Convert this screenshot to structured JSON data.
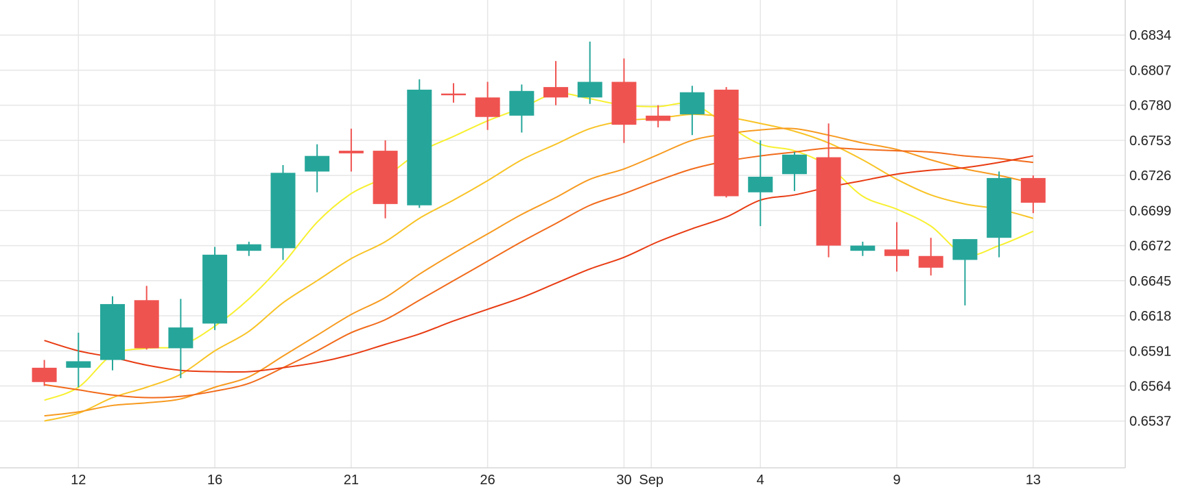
{
  "colors": {
    "background": "#ffffff",
    "grid": "#e6e6e6",
    "up": "#26a69a",
    "down": "#ef5350"
  },
  "chart_data": {
    "type": "candlestick",
    "grid": true,
    "y_axis_side": "right",
    "ylim": [
      0.6501,
      0.6861
    ],
    "xlim": [
      -1.3,
      31.7
    ],
    "y_ticks": [
      "0.6537",
      "0.6564",
      "0.6591",
      "0.6618",
      "0.6645",
      "0.6672",
      "0.6699",
      "0.6726",
      "0.6753",
      "0.6780",
      "0.6807",
      "0.6834"
    ],
    "x_ticks": [
      {
        "index": 1,
        "label": "12"
      },
      {
        "index": 5,
        "label": "16"
      },
      {
        "index": 9,
        "label": "21"
      },
      {
        "index": 13,
        "label": "26"
      },
      {
        "index": 17,
        "label": "30"
      },
      {
        "index": 17.8,
        "label": "Sep"
      },
      {
        "index": 21,
        "label": "4"
      },
      {
        "index": 25,
        "label": "9"
      },
      {
        "index": 29,
        "label": "13"
      }
    ],
    "candles": [
      {
        "open": 0.6578,
        "high": 0.6584,
        "low": 0.6564,
        "close": 0.6567
      },
      {
        "open": 0.6578,
        "high": 0.6605,
        "low": 0.6563,
        "close": 0.6583
      },
      {
        "open": 0.6584,
        "high": 0.6633,
        "low": 0.6576,
        "close": 0.6627
      },
      {
        "open": 0.663,
        "high": 0.6641,
        "low": 0.6592,
        "close": 0.6593
      },
      {
        "open": 0.6593,
        "high": 0.6631,
        "low": 0.657,
        "close": 0.6609
      },
      {
        "open": 0.6612,
        "high": 0.6671,
        "low": 0.6607,
        "close": 0.6665
      },
      {
        "open": 0.6668,
        "high": 0.6675,
        "low": 0.6664,
        "close": 0.6673
      },
      {
        "open": 0.667,
        "high": 0.6734,
        "low": 0.6661,
        "close": 0.6728
      },
      {
        "open": 0.6729,
        "high": 0.675,
        "low": 0.6713,
        "close": 0.6741
      },
      {
        "open": 0.6745,
        "high": 0.6762,
        "low": 0.6729,
        "close": 0.6743
      },
      {
        "open": 0.6745,
        "high": 0.6753,
        "low": 0.6693,
        "close": 0.6704
      },
      {
        "open": 0.6703,
        "high": 0.68,
        "low": 0.6701,
        "close": 0.6792
      },
      {
        "open": 0.6789,
        "high": 0.6797,
        "low": 0.6782,
        "close": 0.6788
      },
      {
        "open": 0.6786,
        "high": 0.6798,
        "low": 0.6761,
        "close": 0.6771
      },
      {
        "open": 0.6772,
        "high": 0.6796,
        "low": 0.6759,
        "close": 0.6791
      },
      {
        "open": 0.6794,
        "high": 0.6814,
        "low": 0.678,
        "close": 0.6786
      },
      {
        "open": 0.6786,
        "high": 0.6829,
        "low": 0.6781,
        "close": 0.6798
      },
      {
        "open": 0.6798,
        "high": 0.6816,
        "low": 0.6751,
        "close": 0.6765
      },
      {
        "open": 0.6772,
        "high": 0.678,
        "low": 0.6763,
        "close": 0.6768
      },
      {
        "open": 0.6773,
        "high": 0.6795,
        "low": 0.6757,
        "close": 0.679
      },
      {
        "open": 0.6792,
        "high": 0.6794,
        "low": 0.6709,
        "close": 0.671
      },
      {
        "open": 0.6713,
        "high": 0.6753,
        "low": 0.6687,
        "close": 0.6725
      },
      {
        "open": 0.6727,
        "high": 0.6744,
        "low": 0.6714,
        "close": 0.6742
      },
      {
        "open": 0.674,
        "high": 0.6766,
        "low": 0.6663,
        "close": 0.6672
      },
      {
        "open": 0.6668,
        "high": 0.6675,
        "low": 0.6664,
        "close": 0.6672
      },
      {
        "open": 0.6669,
        "high": 0.669,
        "low": 0.6652,
        "close": 0.6664
      },
      {
        "open": 0.6664,
        "high": 0.6678,
        "low": 0.6649,
        "close": 0.6655
      },
      {
        "open": 0.6661,
        "high": 0.6677,
        "low": 0.6626,
        "close": 0.6677
      },
      {
        "open": 0.6678,
        "high": 0.6729,
        "low": 0.6663,
        "close": 0.6724
      },
      {
        "open": 0.6724,
        "high": 0.6726,
        "low": 0.6697,
        "close": 0.6705
      }
    ],
    "series": [
      {
        "color": "#f7f02f",
        "values": [
          0.6553,
          0.6563,
          0.6588,
          0.6593,
          0.6595,
          0.661,
          0.6631,
          0.6658,
          0.669,
          0.6712,
          0.6725,
          0.6744,
          0.6756,
          0.6768,
          0.6778,
          0.6789,
          0.6785,
          0.678,
          0.6779,
          0.6781,
          0.6765,
          0.675,
          0.6745,
          0.6733,
          0.671,
          0.67,
          0.6687,
          0.6665,
          0.6672,
          0.6683
        ]
      },
      {
        "color": "#f8c325",
        "values": [
          0.6537,
          0.6543,
          0.6555,
          0.6563,
          0.6573,
          0.6591,
          0.6606,
          0.6628,
          0.6645,
          0.6662,
          0.6675,
          0.6693,
          0.6707,
          0.6722,
          0.6738,
          0.675,
          0.6762,
          0.6768,
          0.677,
          0.6773,
          0.6771,
          0.6766,
          0.676,
          0.6751,
          0.6738,
          0.6723,
          0.6711,
          0.6704,
          0.67,
          0.6693
        ]
      },
      {
        "color": "#f79a1f",
        "values": [
          0.6541,
          0.6544,
          0.6549,
          0.6551,
          0.6554,
          0.6563,
          0.6571,
          0.6587,
          0.6603,
          0.6619,
          0.6632,
          0.665,
          0.6666,
          0.6681,
          0.6696,
          0.6709,
          0.6723,
          0.6731,
          0.6742,
          0.6753,
          0.6758,
          0.6761,
          0.6762,
          0.6757,
          0.6751,
          0.6746,
          0.6738,
          0.6731,
          0.6726,
          0.672
        ]
      },
      {
        "color": "#f16a1a",
        "values": [
          0.6565,
          0.6561,
          0.6557,
          0.6555,
          0.6556,
          0.656,
          0.6566,
          0.6578,
          0.6591,
          0.6605,
          0.6615,
          0.663,
          0.6645,
          0.666,
          0.6675,
          0.6689,
          0.6703,
          0.6712,
          0.6722,
          0.6731,
          0.6737,
          0.6741,
          0.6744,
          0.6747,
          0.6746,
          0.6745,
          0.6744,
          0.6741,
          0.6739,
          0.6736
        ]
      },
      {
        "color": "#e83b12",
        "values": [
          0.6599,
          0.6591,
          0.6586,
          0.658,
          0.6576,
          0.6575,
          0.6575,
          0.6578,
          0.6582,
          0.6588,
          0.6596,
          0.6604,
          0.6614,
          0.6623,
          0.6632,
          0.6643,
          0.6654,
          0.6663,
          0.6675,
          0.6685,
          0.6694,
          0.6707,
          0.6711,
          0.6717,
          0.6722,
          0.6727,
          0.673,
          0.6732,
          0.6736,
          0.6741
        ]
      }
    ]
  }
}
